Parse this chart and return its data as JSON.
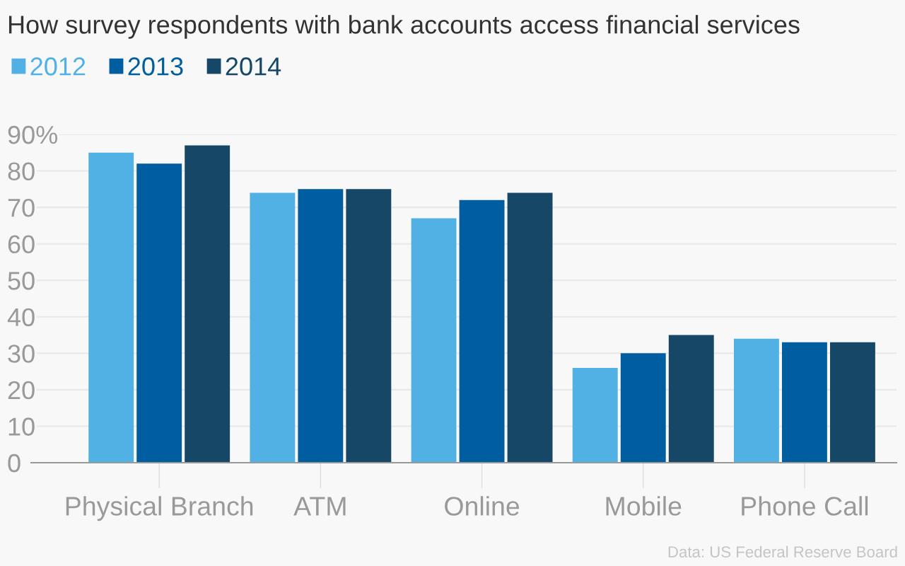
{
  "chart_data": {
    "type": "bar",
    "title": "How survey respondents with bank accounts access financial services",
    "categories": [
      "Physical Branch",
      "ATM",
      "Online",
      "Mobile",
      "Phone Call"
    ],
    "series": [
      {
        "name": "2012",
        "color": "#51b1e4",
        "values": [
          85,
          74,
          67,
          26,
          34
        ]
      },
      {
        "name": "2013",
        "color": "#005da0",
        "values": [
          82,
          75,
          72,
          30,
          33
        ]
      },
      {
        "name": "2014",
        "color": "#164766",
        "values": [
          87,
          75,
          74,
          35,
          33
        ]
      }
    ],
    "ylim": [
      0,
      90
    ],
    "yticks": [
      0,
      10,
      20,
      30,
      40,
      50,
      60,
      70,
      80,
      {
        "value": 90,
        "label": "90%"
      }
    ],
    "grid": "y",
    "legend": "top left",
    "annotations": [
      "Data: US Federal Reserve Board"
    ]
  }
}
